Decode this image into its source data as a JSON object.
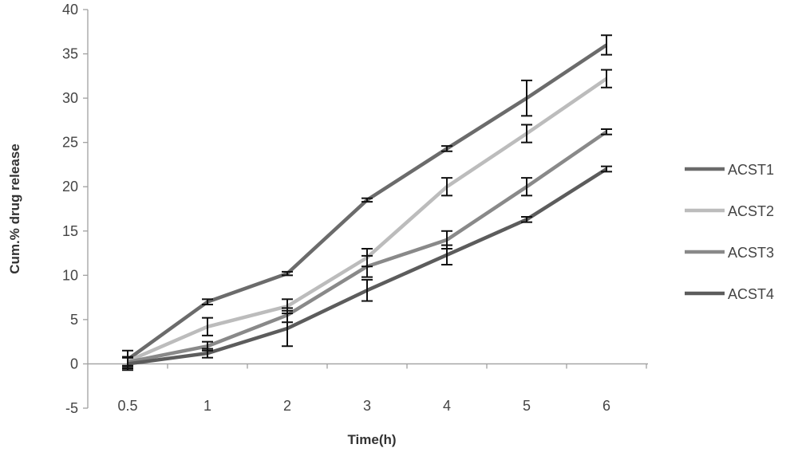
{
  "chart_data": {
    "type": "line",
    "title": "",
    "xlabel": "Time(h)",
    "ylabel": "Cum.% drug release",
    "categories": [
      "0.5",
      "1",
      "2",
      "3",
      "4",
      "5",
      "6"
    ],
    "ylim": [
      -5,
      40
    ],
    "yticks": [
      -5,
      0,
      5,
      10,
      15,
      20,
      25,
      30,
      35,
      40
    ],
    "grid": false,
    "legend": "right",
    "series": [
      {
        "name": "ACST1",
        "color": "#6b6b6b",
        "values": [
          0.5,
          7,
          10.2,
          18.5,
          24.3,
          30,
          36
        ],
        "errors": [
          1.0,
          0.3,
          0.2,
          0.2,
          0.3,
          2.0,
          1.1
        ]
      },
      {
        "name": "ACST2",
        "color": "#bcbcbc",
        "values": [
          0.3,
          4.2,
          6.5,
          12,
          20,
          26,
          32.2
        ],
        "errors": [
          0.5,
          1.0,
          0.8,
          1.0,
          1.0,
          1.0,
          1.0
        ]
      },
      {
        "name": "ACST3",
        "color": "#898989",
        "values": [
          0.2,
          2,
          5.5,
          11,
          14,
          20,
          26.2
        ],
        "errors": [
          0.5,
          0.5,
          0.8,
          1.2,
          1.0,
          1.0,
          0.3
        ]
      },
      {
        "name": "ACST4",
        "color": "#5c5c5c",
        "values": [
          0,
          1.2,
          4,
          8.3,
          12.3,
          16.3,
          22
        ],
        "errors": [
          0.7,
          0.5,
          2.0,
          1.2,
          1.1,
          0.3,
          0.3
        ]
      }
    ]
  }
}
